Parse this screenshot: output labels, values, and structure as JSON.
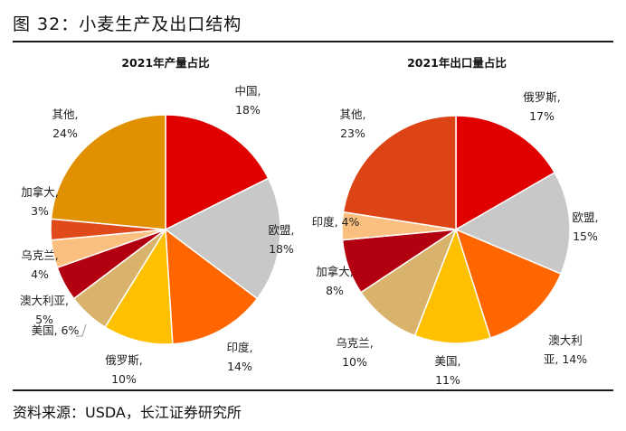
{
  "figure": {
    "title": "图 32：小麦生产及出口结构",
    "source": "资料来源：USDA，长江证券研究所"
  },
  "chart_data": [
    {
      "type": "pie",
      "title": "2021年产量占比",
      "unit": "%",
      "slices": [
        {
          "label": "中国",
          "value": 18,
          "text": [
            "中国,",
            "18%"
          ],
          "color": "#e00000"
        },
        {
          "label": "欧盟",
          "value": 18,
          "text": [
            "欧盟,",
            "18%"
          ],
          "color": "#c8c8c8"
        },
        {
          "label": "印度",
          "value": 14,
          "text": [
            "印度,",
            "14%"
          ],
          "color": "#ff6600"
        },
        {
          "label": "俄罗斯",
          "value": 10,
          "text": [
            "俄罗斯,",
            "10%"
          ],
          "color": "#ffc000"
        },
        {
          "label": "美国",
          "value": 6,
          "text": [
            "美国, 6%"
          ],
          "color": "#d9b36c"
        },
        {
          "label": "澳大利亚",
          "value": 5,
          "text": [
            "澳大利亚,",
            "5%"
          ],
          "color": "#b30010"
        },
        {
          "label": "乌克兰",
          "value": 4,
          "text": [
            "乌克兰,",
            "4%"
          ],
          "color": "#fbbf80"
        },
        {
          "label": "加拿大",
          "value": 3,
          "text": [
            "加拿大,",
            "3%"
          ],
          "color": "#e04a1a"
        },
        {
          "label": "其他",
          "value": 24,
          "text": [
            "其他,",
            "24%"
          ],
          "color": "#e09000"
        }
      ]
    },
    {
      "type": "pie",
      "title": "2021年出口量占比",
      "unit": "%",
      "slices": [
        {
          "label": "俄罗斯",
          "value": 17,
          "text": [
            "俄罗斯,",
            "17%"
          ],
          "color": "#e00000"
        },
        {
          "label": "欧盟",
          "value": 15,
          "text": [
            "欧盟,",
            "15%"
          ],
          "color": "#c8c8c8"
        },
        {
          "label": "澳大利亚",
          "value": 14,
          "text": [
            "澳大利",
            "亚, 14%"
          ],
          "color": "#ff6600"
        },
        {
          "label": "美国",
          "value": 11,
          "text": [
            "美国,",
            "11%"
          ],
          "color": "#ffc000"
        },
        {
          "label": "乌克兰",
          "value": 10,
          "text": [
            "乌克兰,",
            "10%"
          ],
          "color": "#d9b36c"
        },
        {
          "label": "加拿大",
          "value": 8,
          "text": [
            "加拿大,",
            "8%"
          ],
          "color": "#b30010"
        },
        {
          "label": "印度",
          "value": 4,
          "text": [
            "印度, 4%"
          ],
          "color": "#fbbf80"
        },
        {
          "label": "其他",
          "value": 23,
          "text": [
            "其他,",
            "23%"
          ],
          "color": "#dd4415"
        }
      ]
    }
  ]
}
